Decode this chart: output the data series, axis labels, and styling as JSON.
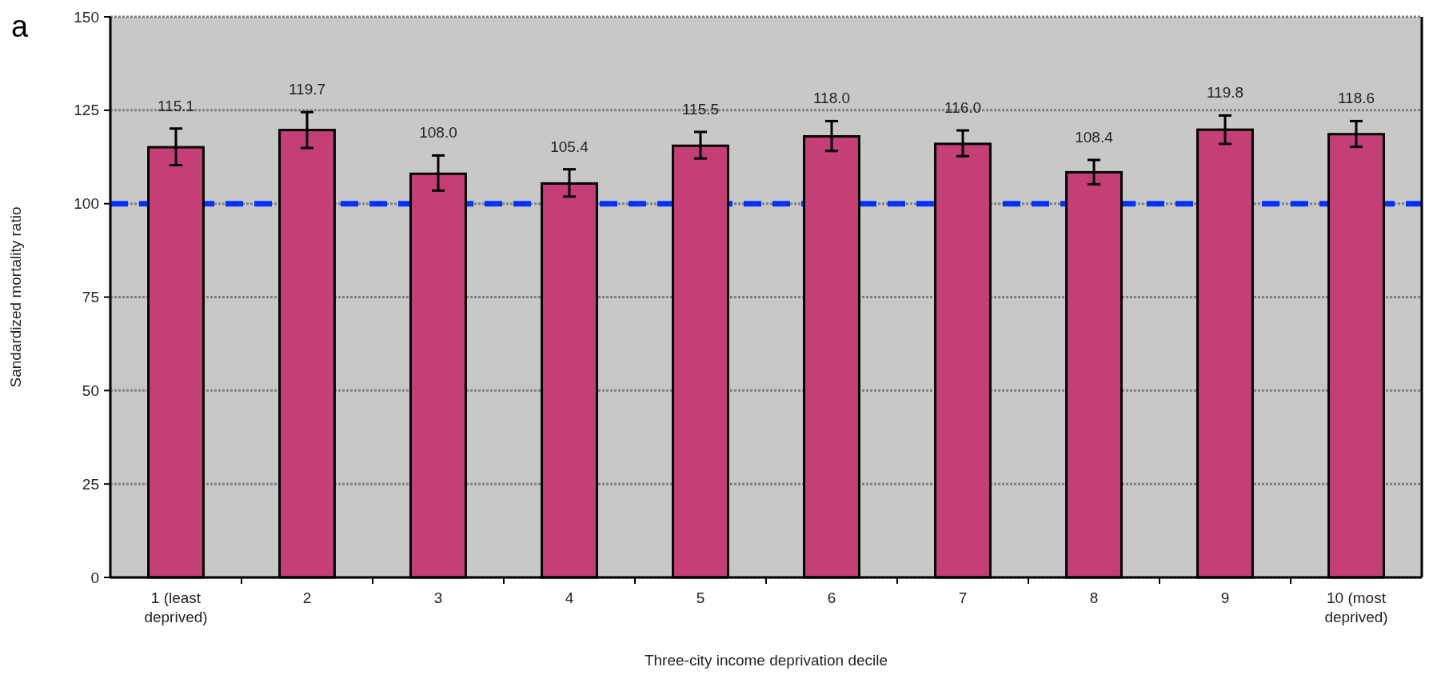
{
  "chart_data": {
    "type": "bar",
    "xlabel": "Three-city income deprivation decile",
    "ylabel": "Sandardized mortality ratio",
    "annotations": [
      "a"
    ],
    "categories": [
      "1 (least deprived)",
      "2",
      "3",
      "4",
      "5",
      "6",
      "7",
      "8",
      "9",
      "10 (most deprived)"
    ],
    "values": [
      115.1,
      119.7,
      108.0,
      105.4,
      115.5,
      118.0,
      116.0,
      108.4,
      119.8,
      118.6
    ],
    "errors": [
      [
        110.3,
        120.1
      ],
      [
        114.9,
        124.5
      ],
      [
        103.5,
        112.9
      ],
      [
        101.9,
        109.2
      ],
      [
        112.1,
        119.2
      ],
      [
        114.1,
        122.1
      ],
      [
        112.7,
        119.6
      ],
      [
        105.2,
        111.7
      ],
      [
        116.0,
        123.6
      ],
      [
        115.2,
        122.1
      ]
    ],
    "color": "#c43f76",
    "value_labels": [
      "115.1",
      "119.7",
      "108.0",
      "105.4",
      "115.5",
      "118.0",
      "116.0",
      "108.4",
      "119.8",
      "118.6"
    ],
    "ylim": [
      0,
      150
    ],
    "yticks": [
      0,
      25,
      50,
      75,
      100,
      125,
      150
    ],
    "grid": "y",
    "ref_lines": [
      {
        "axis": "y",
        "value": 100,
        "color": "#0033ff",
        "line_style": "dashed"
      }
    ]
  }
}
